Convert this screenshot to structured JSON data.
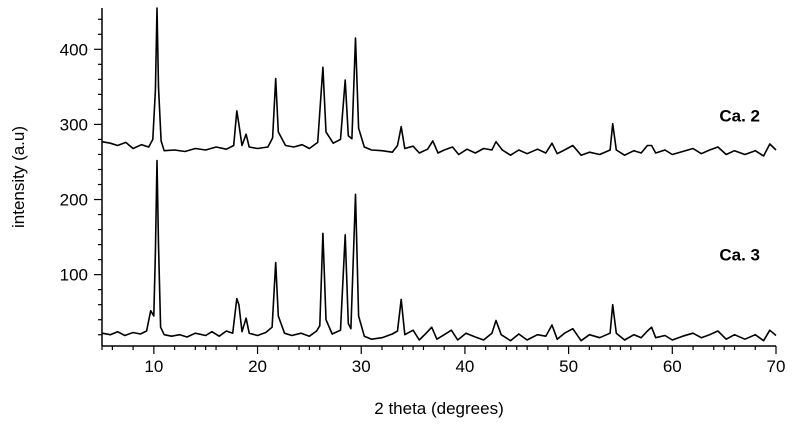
{
  "chart_data": {
    "type": "line",
    "title": "",
    "xlabel": "2 theta (degrees)",
    "ylabel": "intensity (a.u)",
    "xlim": [
      5,
      70
    ],
    "ylim": [
      5,
      455
    ],
    "x_ticks": [
      10,
      20,
      30,
      40,
      50,
      60,
      70
    ],
    "y_ticks": [
      100,
      200,
      300,
      400
    ],
    "grid": false,
    "legend": "none",
    "series": [
      {
        "name": "Ca. 2",
        "label_at": [
          66.5,
          304
        ],
        "points": [
          [
            5,
            22
          ],
          [
            5.8,
            20
          ],
          [
            6.5,
            24
          ],
          [
            7.2,
            19
          ],
          [
            8,
            23
          ],
          [
            8.7,
            21
          ],
          [
            9.3,
            25
          ],
          [
            9.7,
            52
          ],
          [
            10,
            45
          ],
          [
            10.15,
            130
          ],
          [
            10.3,
            252
          ],
          [
            10.45,
            140
          ],
          [
            10.65,
            30
          ],
          [
            11,
            20
          ],
          [
            11.7,
            18
          ],
          [
            12.5,
            20
          ],
          [
            13.2,
            17
          ],
          [
            14,
            22
          ],
          [
            15,
            19
          ],
          [
            15.6,
            24
          ],
          [
            16.3,
            18
          ],
          [
            17,
            25
          ],
          [
            17.6,
            22
          ],
          [
            18,
            68
          ],
          [
            18.2,
            60
          ],
          [
            18.5,
            24
          ],
          [
            18.9,
            42
          ],
          [
            19.2,
            22
          ],
          [
            20,
            19
          ],
          [
            20.8,
            23
          ],
          [
            21.4,
            30
          ],
          [
            21.75,
            116
          ],
          [
            22,
            45
          ],
          [
            22.6,
            22
          ],
          [
            23.3,
            19
          ],
          [
            24.2,
            22
          ],
          [
            25,
            18
          ],
          [
            25.7,
            25
          ],
          [
            26,
            32
          ],
          [
            26.3,
            155
          ],
          [
            26.6,
            40
          ],
          [
            27.2,
            21
          ],
          [
            28,
            26
          ],
          [
            28.45,
            153
          ],
          [
            28.75,
            35
          ],
          [
            29,
            28
          ],
          [
            29.45,
            207
          ],
          [
            29.75,
            45
          ],
          [
            30.3,
            18
          ],
          [
            31,
            14
          ],
          [
            32,
            16
          ],
          [
            33,
            21
          ],
          [
            33.5,
            25
          ],
          [
            33.85,
            67
          ],
          [
            34.2,
            20
          ],
          [
            35,
            26
          ],
          [
            35.6,
            13
          ],
          [
            36.4,
            24
          ],
          [
            36.8,
            30
          ],
          [
            37.3,
            14
          ],
          [
            38,
            20
          ],
          [
            38.7,
            26
          ],
          [
            39.3,
            13
          ],
          [
            40.1,
            22
          ],
          [
            41,
            17
          ],
          [
            41.8,
            13
          ],
          [
            42.6,
            22
          ],
          [
            43,
            39
          ],
          [
            43.5,
            20
          ],
          [
            44.4,
            12
          ],
          [
            45.2,
            21
          ],
          [
            46,
            13
          ],
          [
            47,
            20
          ],
          [
            47.8,
            18
          ],
          [
            48.4,
            33
          ],
          [
            48.9,
            14
          ],
          [
            49.6,
            22
          ],
          [
            50.4,
            28
          ],
          [
            51.2,
            12
          ],
          [
            52,
            20
          ],
          [
            53,
            16
          ],
          [
            54,
            22
          ],
          [
            54.25,
            60
          ],
          [
            54.6,
            22
          ],
          [
            55.4,
            13
          ],
          [
            56.3,
            20
          ],
          [
            57,
            16
          ],
          [
            57.6,
            25
          ],
          [
            58,
            30
          ],
          [
            58.4,
            16
          ],
          [
            59.3,
            19
          ],
          [
            60,
            13
          ],
          [
            61,
            18
          ],
          [
            62,
            22
          ],
          [
            62.8,
            16
          ],
          [
            63.6,
            20
          ],
          [
            64.4,
            25
          ],
          [
            65.2,
            14
          ],
          [
            66,
            20
          ],
          [
            67,
            14
          ],
          [
            68,
            20
          ],
          [
            68.8,
            12
          ],
          [
            69.4,
            26
          ],
          [
            70,
            19
          ]
        ]
      },
      {
        "name": "Ca. 3",
        "label_at": [
          66.5,
          119
        ],
        "points": [
          [
            5,
            277
          ],
          [
            5.8,
            275
          ],
          [
            6.5,
            272
          ],
          [
            7.3,
            276
          ],
          [
            8,
            268
          ],
          [
            8.8,
            273
          ],
          [
            9.5,
            270
          ],
          [
            9.9,
            280
          ],
          [
            10.15,
            345
          ],
          [
            10.3,
            455
          ],
          [
            10.45,
            350
          ],
          [
            10.7,
            278
          ],
          [
            11,
            265
          ],
          [
            12,
            266
          ],
          [
            13,
            264
          ],
          [
            14,
            268
          ],
          [
            15,
            266
          ],
          [
            16,
            270
          ],
          [
            17,
            267
          ],
          [
            17.7,
            272
          ],
          [
            18,
            318
          ],
          [
            18.2,
            300
          ],
          [
            18.5,
            272
          ],
          [
            18.9,
            287
          ],
          [
            19.2,
            270
          ],
          [
            20,
            268
          ],
          [
            21,
            270
          ],
          [
            21.45,
            282
          ],
          [
            21.75,
            361
          ],
          [
            22,
            290
          ],
          [
            22.7,
            272
          ],
          [
            23.5,
            270
          ],
          [
            24.3,
            273
          ],
          [
            25,
            268
          ],
          [
            25.8,
            276
          ],
          [
            26.3,
            376
          ],
          [
            26.6,
            290
          ],
          [
            27.3,
            275
          ],
          [
            28,
            280
          ],
          [
            28.45,
            359
          ],
          [
            28.75,
            285
          ],
          [
            29.1,
            281
          ],
          [
            29.45,
            415
          ],
          [
            29.75,
            295
          ],
          [
            30.3,
            270
          ],
          [
            31,
            266
          ],
          [
            32,
            265
          ],
          [
            33,
            263
          ],
          [
            33.5,
            272
          ],
          [
            33.85,
            297
          ],
          [
            34.2,
            268
          ],
          [
            35,
            271
          ],
          [
            35.6,
            262
          ],
          [
            36.4,
            267
          ],
          [
            36.9,
            278
          ],
          [
            37.4,
            262
          ],
          [
            38,
            266
          ],
          [
            38.8,
            270
          ],
          [
            39.4,
            260
          ],
          [
            40.2,
            267
          ],
          [
            41,
            262
          ],
          [
            41.8,
            268
          ],
          [
            42.6,
            266
          ],
          [
            43,
            277
          ],
          [
            43.6,
            266
          ],
          [
            44.4,
            259
          ],
          [
            45.2,
            266
          ],
          [
            46,
            261
          ],
          [
            47,
            267
          ],
          [
            47.8,
            262
          ],
          [
            48.4,
            275
          ],
          [
            48.9,
            261
          ],
          [
            49.6,
            266
          ],
          [
            50.4,
            272
          ],
          [
            51.2,
            259
          ],
          [
            52,
            263
          ],
          [
            53,
            260
          ],
          [
            54,
            266
          ],
          [
            54.25,
            301
          ],
          [
            54.6,
            266
          ],
          [
            55.4,
            259
          ],
          [
            56.3,
            265
          ],
          [
            57,
            262
          ],
          [
            57.6,
            272
          ],
          [
            58,
            272
          ],
          [
            58.4,
            262
          ],
          [
            59.3,
            266
          ],
          [
            60,
            260
          ],
          [
            61,
            264
          ],
          [
            62,
            268
          ],
          [
            62.8,
            261
          ],
          [
            63.6,
            266
          ],
          [
            64.4,
            270
          ],
          [
            65.2,
            260
          ],
          [
            66,
            265
          ],
          [
            67,
            260
          ],
          [
            68,
            265
          ],
          [
            68.8,
            258
          ],
          [
            69.4,
            274
          ],
          [
            70,
            266
          ]
        ]
      }
    ]
  }
}
